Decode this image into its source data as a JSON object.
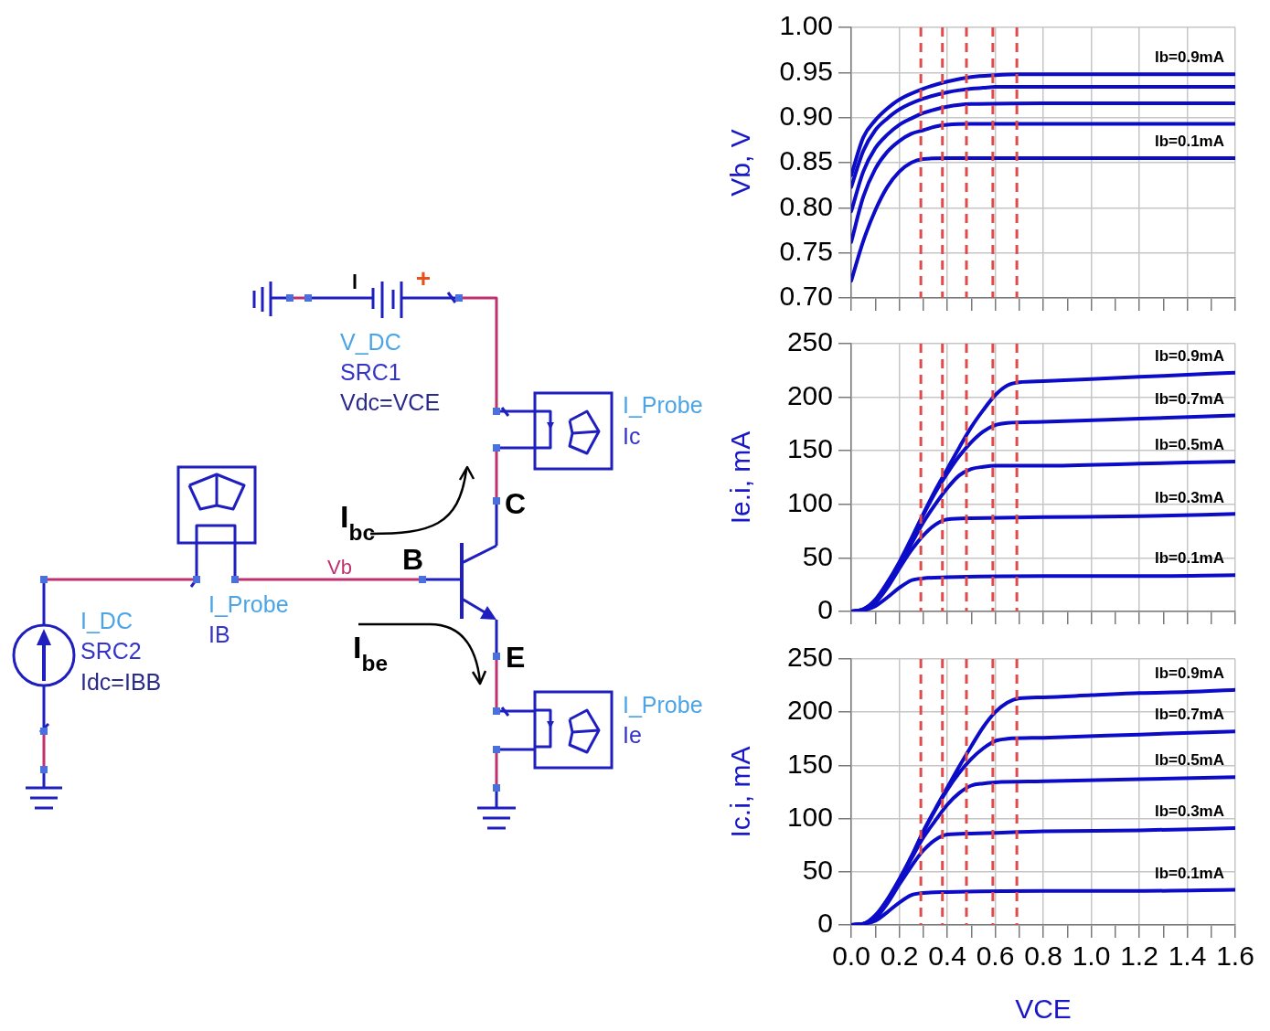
{
  "chart_data": [
    {
      "type": "other",
      "annotations": [
        "+",
        "V_DC",
        "SRC1",
        "Vdc=VCE",
        "I_Probe",
        "Ic",
        "C",
        "I$_{bc}$",
        "I_Probe",
        "IB",
        "Vb",
        "B",
        "I_DC",
        "SRC2",
        "Idc=IBB",
        "I$_{be}$",
        "E",
        "I_Probe",
        "Ie"
      ]
    },
    {
      "type": "line",
      "ylabel": "Vb, V",
      "xlim": [
        0,
        1.6
      ],
      "xticks": [
        {
          "value": 0,
          "label": null
        },
        {
          "value": 0.1,
          "label": null
        },
        {
          "value": 0.2,
          "label": null
        },
        {
          "value": 0.3,
          "label": null
        },
        {
          "value": 0.4,
          "label": null
        },
        {
          "value": 0.5,
          "label": null
        },
        {
          "value": 0.6,
          "label": null
        },
        {
          "value": 0.7,
          "label": null
        },
        {
          "value": 0.8,
          "label": null
        },
        {
          "value": 0.9,
          "label": null
        },
        {
          "value": 1,
          "label": null
        },
        {
          "value": 1.1,
          "label": null
        },
        {
          "value": 1.2,
          "label": null
        },
        {
          "value": 1.3,
          "label": null
        },
        {
          "value": 1.4,
          "label": null
        },
        {
          "value": 1.5,
          "label": null
        },
        {
          "value": 1.6,
          "label": null
        }
      ],
      "ylim": [
        0.7,
        1.0
      ],
      "yticks": [
        {
          "value": 0.7,
          "label": "0.70"
        },
        0.75,
        {
          "value": 0.8,
          "label": "0.80"
        },
        0.85,
        {
          "value": 0.9,
          "label": "0.90"
        },
        0.95,
        {
          "value": 1,
          "label": "1.00"
        }
      ],
      "tick_labels": "y",
      "grid": true,
      "series": [
        {
          "name": "Ib=0.1mA",
          "color": "#0c0cc8",
          "x": [
            0,
            0.05,
            0.1,
            0.15,
            0.2,
            0.25,
            0.3,
            0.4,
            0.8,
            1.2,
            1.6
          ],
          "values": [
            0.719,
            0.763,
            0.797,
            0.823,
            0.84,
            0.85,
            0.854,
            0.855,
            0.855,
            0.855,
            0.855
          ]
        },
        {
          "color": "#0c0cc8",
          "x": [
            0,
            0.05,
            0.1,
            0.15,
            0.2,
            0.25,
            0.3,
            0.35,
            0.4,
            0.5,
            0.8,
            1.2,
            1.6
          ],
          "values": [
            0.762,
            0.812,
            0.843,
            0.862,
            0.874,
            0.882,
            0.886,
            0.89,
            0.892,
            0.893,
            0.893,
            0.893,
            0.893
          ]
        },
        {
          "color": "#0c0cc8",
          "x": [
            0,
            0.05,
            0.1,
            0.15,
            0.2,
            0.25,
            0.3,
            0.35,
            0.4,
            0.45,
            0.5,
            0.8,
            1.2,
            1.6
          ],
          "values": [
            0.796,
            0.84,
            0.866,
            0.881,
            0.892,
            0.899,
            0.905,
            0.909,
            0.912,
            0.914,
            0.915,
            0.916,
            0.916,
            0.916
          ]
        },
        {
          "color": "#0c0cc8",
          "x": [
            0,
            0.05,
            0.1,
            0.15,
            0.2,
            0.3,
            0.4,
            0.5,
            0.55,
            0.6,
            0.8,
            1.2,
            1.6
          ],
          "values": [
            0.823,
            0.863,
            0.886,
            0.899,
            0.909,
            0.921,
            0.928,
            0.932,
            0.933,
            0.934,
            0.934,
            0.934,
            0.934
          ]
        },
        {
          "name": "Ib=0.9mA",
          "color": "#0c0cc8",
          "x": [
            0,
            0.05,
            0.1,
            0.15,
            0.2,
            0.3,
            0.4,
            0.5,
            0.6,
            0.7,
            0.8,
            1.2,
            1.6
          ],
          "values": [
            0.836,
            0.878,
            0.897,
            0.91,
            0.92,
            0.932,
            0.94,
            0.945,
            0.947,
            0.948,
            0.948,
            0.948,
            0.948
          ]
        }
      ],
      "ref_lines": [
        {
          "axis": "x",
          "value": 0.29,
          "color": "#e04a4a",
          "line_style": "dashed"
        },
        {
          "axis": "x",
          "value": 0.38,
          "color": "#e04a4a",
          "line_style": "dashed"
        },
        {
          "axis": "x",
          "value": 0.48,
          "color": "#e04a4a",
          "line_style": "dashed"
        },
        {
          "axis": "x",
          "value": 0.59,
          "color": "#e04a4a",
          "line_style": "dashed"
        },
        {
          "axis": "x",
          "value": 0.69,
          "color": "#e04a4a",
          "line_style": "dashed"
        }
      ]
    },
    {
      "type": "line",
      "ylabel": "Ie.i, mA",
      "xlim": [
        0,
        1.6
      ],
      "xticks": [
        {
          "value": 0,
          "label": null
        },
        {
          "value": 0.1,
          "label": null
        },
        {
          "value": 0.2,
          "label": null
        },
        {
          "value": 0.3,
          "label": null
        },
        {
          "value": 0.4,
          "label": null
        },
        {
          "value": 0.5,
          "label": null
        },
        {
          "value": 0.6,
          "label": null
        },
        {
          "value": 0.7,
          "label": null
        },
        {
          "value": 0.8,
          "label": null
        },
        {
          "value": 0.9,
          "label": null
        },
        {
          "value": 1,
          "label": null
        },
        {
          "value": 1.1,
          "label": null
        },
        {
          "value": 1.2,
          "label": null
        },
        {
          "value": 1.3,
          "label": null
        },
        {
          "value": 1.4,
          "label": null
        },
        {
          "value": 1.5,
          "label": null
        },
        {
          "value": 1.6,
          "label": null
        }
      ],
      "ylim": [
        0,
        250
      ],
      "yticks": [
        0,
        50,
        100,
        150,
        200,
        250
      ],
      "tick_labels": "y",
      "grid": true,
      "series": [
        {
          "name": "Ib=0.1mA",
          "color": "#0c0cc8",
          "x": [
            0,
            0.05,
            0.1,
            0.15,
            0.2,
            0.25,
            0.3,
            0.4,
            0.8,
            1.2,
            1.6
          ],
          "values": [
            0,
            1,
            5,
            13,
            22,
            29,
            31,
            32,
            33,
            33,
            34
          ]
        },
        {
          "name": "Ib=0.3mA",
          "color": "#0c0cc8",
          "x": [
            0,
            0.05,
            0.1,
            0.15,
            0.2,
            0.25,
            0.3,
            0.35,
            0.4,
            0.5,
            0.8,
            1.2,
            1.6
          ],
          "values": [
            0,
            1,
            8,
            22,
            40,
            57,
            71,
            81,
            86,
            87,
            88,
            89,
            91
          ]
        },
        {
          "name": "Ib=0.5mA",
          "color": "#0c0cc8",
          "x": [
            0,
            0.05,
            0.1,
            0.15,
            0.2,
            0.25,
            0.3,
            0.35,
            0.4,
            0.45,
            0.5,
            0.55,
            0.6,
            0.8,
            1.2,
            1.6
          ],
          "values": [
            0,
            1,
            9,
            24,
            43,
            63,
            83,
            100,
            115,
            127,
            133,
            135,
            136,
            136,
            138,
            140
          ]
        },
        {
          "name": "Ib=0.7mA",
          "color": "#0c0cc8",
          "x": [
            0,
            0.05,
            0.1,
            0.15,
            0.2,
            0.25,
            0.3,
            0.35,
            0.4,
            0.45,
            0.5,
            0.55,
            0.6,
            0.65,
            0.8,
            1.2,
            1.6
          ],
          "values": [
            0,
            2,
            10,
            26,
            45,
            67,
            90,
            111,
            129,
            145,
            158,
            168,
            174,
            176,
            177,
            180,
            183
          ]
        },
        {
          "name": "Ib=0.9mA",
          "color": "#0c0cc8",
          "x": [
            0,
            0.05,
            0.1,
            0.15,
            0.2,
            0.25,
            0.3,
            0.35,
            0.4,
            0.45,
            0.5,
            0.55,
            0.6,
            0.65,
            0.7,
            0.8,
            1.0,
            1.2,
            1.4,
            1.6
          ],
          "values": [
            0,
            2,
            11,
            27,
            46,
            68,
            91,
            113,
            133,
            153,
            172,
            188,
            202,
            211,
            214,
            215,
            217,
            219,
            221,
            223
          ]
        }
      ],
      "ref_lines": [
        {
          "axis": "x",
          "value": 0.29,
          "color": "#e04a4a",
          "line_style": "dashed"
        },
        {
          "axis": "x",
          "value": 0.38,
          "color": "#e04a4a",
          "line_style": "dashed"
        },
        {
          "axis": "x",
          "value": 0.48,
          "color": "#e04a4a",
          "line_style": "dashed"
        },
        {
          "axis": "x",
          "value": 0.59,
          "color": "#e04a4a",
          "line_style": "dashed"
        },
        {
          "axis": "x",
          "value": 0.69,
          "color": "#e04a4a",
          "line_style": "dashed"
        }
      ]
    },
    {
      "type": "line",
      "xlabel": "VCE",
      "ylabel": "Ic.i, mA",
      "xlim": [
        0,
        1.6
      ],
      "xticks": [
        {
          "value": 0,
          "label": "0.0"
        },
        {
          "value": 0.1,
          "label": null
        },
        0.2,
        {
          "value": 0.3,
          "label": null
        },
        0.4,
        {
          "value": 0.5,
          "label": null
        },
        0.6,
        {
          "value": 0.7,
          "label": null
        },
        0.8,
        {
          "value": 0.9,
          "label": null
        },
        {
          "value": 1,
          "label": "1.0"
        },
        {
          "value": 1.1,
          "label": null
        },
        1.2,
        {
          "value": 1.3,
          "label": null
        },
        1.4,
        {
          "value": 1.5,
          "label": null
        },
        1.6
      ],
      "ylim": [
        0,
        250
      ],
      "yticks": [
        0,
        50,
        100,
        150,
        200,
        250
      ],
      "grid": true,
      "series": [
        {
          "name": "Ib=0.1mA",
          "color": "#0c0cc8",
          "x": [
            0,
            0.05,
            0.1,
            0.15,
            0.2,
            0.25,
            0.3,
            0.4,
            0.8,
            1.2,
            1.6
          ],
          "values": [
            0,
            1,
            4,
            12,
            21,
            28,
            30,
            31,
            32,
            32,
            33
          ]
        },
        {
          "name": "Ib=0.3mA",
          "color": "#0c0cc8",
          "x": [
            0,
            0.05,
            0.1,
            0.15,
            0.2,
            0.25,
            0.3,
            0.35,
            0.4,
            0.5,
            0.8,
            1.2,
            1.6
          ],
          "values": [
            0,
            1,
            6,
            20,
            38,
            55,
            70,
            80,
            85,
            86,
            88,
            89,
            91
          ]
        },
        {
          "name": "Ib=0.5mA",
          "color": "#0c0cc8",
          "x": [
            0,
            0.05,
            0.1,
            0.15,
            0.2,
            0.25,
            0.3,
            0.35,
            0.4,
            0.45,
            0.5,
            0.55,
            0.6,
            0.8,
            1.2,
            1.6
          ],
          "values": [
            0,
            1,
            7,
            22,
            41,
            62,
            82,
            98,
            113,
            124,
            131,
            133,
            134,
            135,
            137,
            139
          ]
        },
        {
          "name": "Ib=0.7mA",
          "color": "#0c0cc8",
          "x": [
            0,
            0.05,
            0.1,
            0.15,
            0.2,
            0.25,
            0.3,
            0.35,
            0.4,
            0.45,
            0.5,
            0.55,
            0.6,
            0.65,
            0.8,
            1.2,
            1.6
          ],
          "values": [
            0,
            1,
            8,
            23,
            42,
            64,
            87,
            108,
            127,
            143,
            156,
            166,
            173,
            175,
            176,
            179,
            182
          ]
        },
        {
          "name": "Ib=0.9mA",
          "color": "#0c0cc8",
          "x": [
            0,
            0.05,
            0.1,
            0.15,
            0.2,
            0.25,
            0.3,
            0.35,
            0.4,
            0.45,
            0.5,
            0.55,
            0.6,
            0.65,
            0.7,
            0.8,
            1.0,
            1.2,
            1.4,
            1.6
          ],
          "values": [
            0,
            1,
            9,
            24,
            43,
            64,
            88,
            109,
            129,
            149,
            168,
            186,
            200,
            209,
            213,
            214,
            216,
            218,
            219,
            221
          ]
        }
      ],
      "ref_lines": [
        {
          "axis": "x",
          "value": 0.29,
          "color": "#e04a4a",
          "line_style": "dashed"
        },
        {
          "axis": "x",
          "value": 0.38,
          "color": "#e04a4a",
          "line_style": "dashed"
        },
        {
          "axis": "x",
          "value": 0.48,
          "color": "#e04a4a",
          "line_style": "dashed"
        },
        {
          "axis": "x",
          "value": 0.59,
          "color": "#e04a4a",
          "line_style": "dashed"
        },
        {
          "axis": "x",
          "value": 0.69,
          "color": "#e04a4a",
          "line_style": "dashed"
        }
      ]
    }
  ]
}
